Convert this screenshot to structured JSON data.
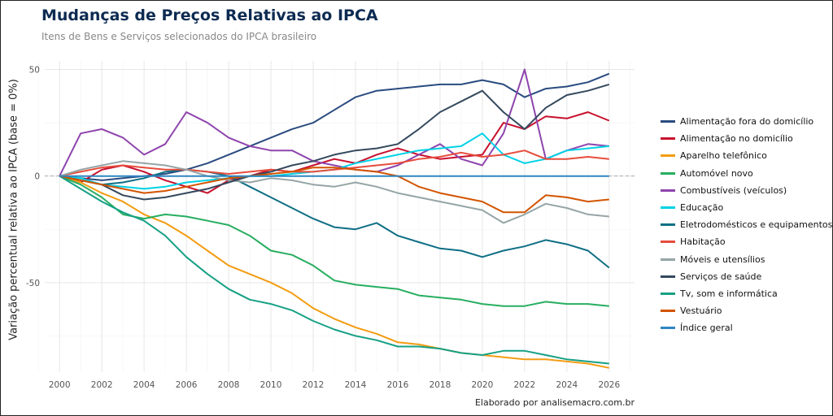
{
  "title": "Mudanças de Preços Relativas ao IPCA",
  "subtitle": "Itens de Bens e Serviços selecionados do IPCA brasileiro",
  "caption": "Elaborado por analisemacro.com.br",
  "chart_data": {
    "type": "line",
    "title": "Mudanças de Preços Relativas ao IPCA",
    "ylabel": "Variação percentual relativa ao IPCA (base  = 0%)",
    "xlabel": "",
    "xlim": [
      1999.3,
      2027.2
    ],
    "ylim": [
      -92,
      54
    ],
    "xticks": [
      2000,
      2002,
      2004,
      2006,
      2008,
      2010,
      2012,
      2014,
      2016,
      2018,
      2020,
      2022,
      2024,
      2026
    ],
    "yticks": [
      50,
      0,
      -50
    ],
    "grid": true,
    "legend_position": "right",
    "x": [
      2000,
      2001,
      2002,
      2003,
      2004,
      2005,
      2006,
      2007,
      2008,
      2009,
      2010,
      2011,
      2012,
      2013,
      2014,
      2015,
      2016,
      2017,
      2018,
      2019,
      2020,
      2021,
      2022,
      2023,
      2024,
      2025,
      2026
    ],
    "series": [
      {
        "name": "Alimentação fora do domicílio",
        "color": "#2a4b80",
        "values": [
          0,
          -1,
          -2,
          -1,
          0,
          1,
          3,
          6,
          10,
          14,
          18,
          22,
          25,
          31,
          37,
          40,
          41,
          42,
          43,
          43,
          45,
          43,
          37,
          41,
          42,
          44,
          48
        ]
      },
      {
        "name": "Alimentação no domicílio",
        "color": "#c8102e",
        "values": [
          0,
          -3,
          3,
          5,
          2,
          -2,
          -5,
          -8,
          -2,
          0,
          3,
          2,
          5,
          8,
          6,
          10,
          13,
          10,
          8,
          9,
          10,
          25,
          22,
          28,
          27,
          30,
          26
        ]
      },
      {
        "name": "Aparelho telefônico",
        "color": "#f39c12",
        "values": [
          0,
          -3,
          -8,
          -12,
          -18,
          -22,
          -28,
          -35,
          -42,
          -46,
          -50,
          -55,
          -62,
          -67,
          -71,
          -74,
          -78,
          -79,
          -81,
          -83,
          -84,
          -85,
          -86,
          -86,
          -87,
          -88,
          -90
        ]
      },
      {
        "name": "Automóvel novo",
        "color": "#27ae60",
        "values": [
          0,
          -4,
          -10,
          -18,
          -20,
          -18,
          -19,
          -21,
          -23,
          -28,
          -35,
          -37,
          -42,
          -49,
          -51,
          -52,
          -53,
          -56,
          -57,
          -58,
          -60,
          -61,
          -61,
          -59,
          -60,
          -60,
          -61
        ]
      },
      {
        "name": "Combustíveis (veículos)",
        "color": "#8e44ad",
        "values": [
          0,
          20,
          22,
          18,
          10,
          15,
          30,
          25,
          18,
          14,
          12,
          12,
          7,
          5,
          3,
          2,
          5,
          10,
          15,
          8,
          5,
          20,
          50,
          8,
          12,
          15,
          14
        ]
      },
      {
        "name": "Educação",
        "color": "#00d2e6",
        "values": [
          0,
          -1,
          -4,
          -5,
          -6,
          -5,
          -3,
          -2,
          -1,
          0,
          0,
          1,
          2,
          3,
          6,
          8,
          10,
          12,
          13,
          14,
          20,
          10,
          6,
          8,
          12,
          13,
          14
        ]
      },
      {
        "name": "Eletrodomésticos e equipamentos",
        "color": "#0e6f85",
        "values": [
          0,
          -2,
          -4,
          -3,
          -1,
          2,
          3,
          2,
          0,
          -5,
          -10,
          -15,
          -20,
          -24,
          -25,
          -22,
          -28,
          -31,
          -34,
          -35,
          -38,
          -35,
          -33,
          -30,
          -32,
          -35,
          -43
        ]
      },
      {
        "name": "Habitação",
        "color": "#e74c3c",
        "values": [
          0,
          2,
          4,
          5,
          4,
          3,
          3,
          2,
          1,
          2,
          3,
          2,
          2,
          3,
          4,
          5,
          6,
          8,
          9,
          11,
          9,
          10,
          12,
          8,
          8,
          9,
          8
        ]
      },
      {
        "name": "Móveis e utensílios",
        "color": "#95a5a6",
        "values": [
          0,
          3,
          5,
          7,
          6,
          5,
          3,
          0,
          -2,
          -3,
          -1,
          -2,
          -4,
          -5,
          -3,
          -5,
          -8,
          -10,
          -12,
          -14,
          -16,
          -22,
          -18,
          -13,
          -15,
          -18,
          -19
        ]
      },
      {
        "name": "Serviços de saúde",
        "color": "#34495e",
        "values": [
          0,
          -2,
          -4,
          -9,
          -11,
          -10,
          -8,
          -6,
          -3,
          0,
          2,
          5,
          7,
          10,
          12,
          13,
          15,
          22,
          30,
          35,
          40,
          30,
          22,
          32,
          38,
          40,
          43
        ]
      },
      {
        "name": "Tv, som e informática",
        "color": "#16a085",
        "values": [
          0,
          -6,
          -12,
          -17,
          -21,
          -28,
          -38,
          -46,
          -53,
          -58,
          -60,
          -63,
          -68,
          -72,
          -75,
          -77,
          -80,
          -80,
          -81,
          -83,
          -84,
          -82,
          -82,
          -84,
          -86,
          -87,
          -88
        ]
      },
      {
        "name": "Vestuário",
        "color": "#d35400",
        "values": [
          0,
          -2,
          -4,
          -6,
          -8,
          -7,
          -5,
          -3,
          -1,
          0,
          1,
          2,
          4,
          4,
          3,
          2,
          0,
          -5,
          -8,
          -10,
          -12,
          -17,
          -17,
          -9,
          -10,
          -12,
          -11
        ]
      },
      {
        "name": "Índice geral",
        "color": "#2e86c1",
        "values": [
          0,
          0,
          0,
          0,
          0,
          0,
          0,
          0,
          0,
          0,
          0,
          0,
          0,
          0,
          0,
          0,
          0,
          0,
          0,
          0,
          0,
          0,
          0,
          0,
          0,
          0,
          0
        ]
      }
    ]
  }
}
